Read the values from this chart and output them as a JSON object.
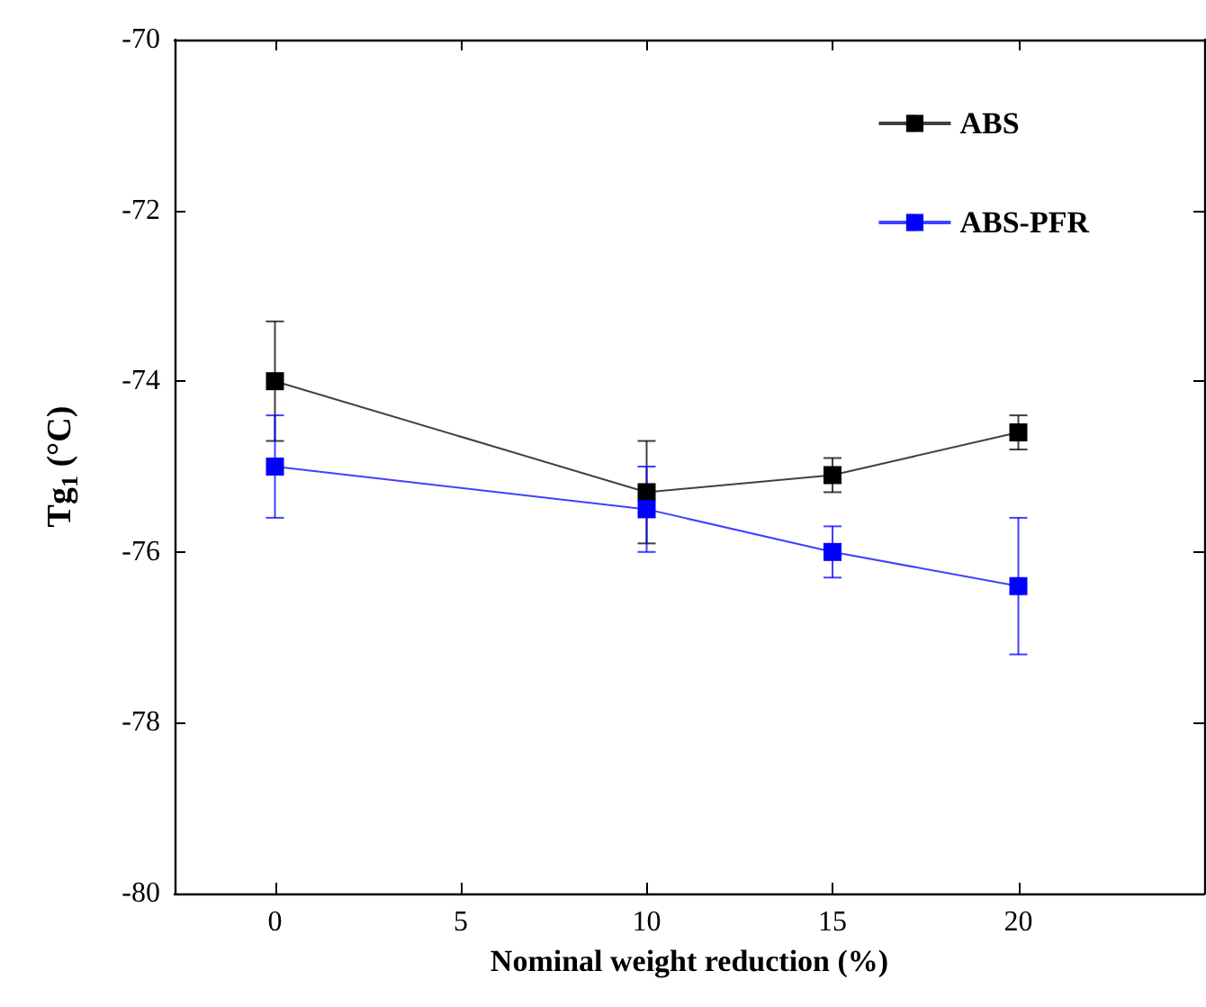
{
  "chart_data": {
    "type": "line",
    "xlabel": "Nominal weight reduction (%)",
    "ylabel": "Tg$_{1}$ (°C)",
    "x": [
      0,
      10,
      15,
      20
    ],
    "series": [
      {
        "name": "ABS",
        "color": "#000000",
        "values": [
          -74.0,
          -75.3,
          -75.1,
          -74.6
        ],
        "errors": [
          0.7,
          0.6,
          0.2,
          0.2
        ]
      },
      {
        "name": "ABS-PFR",
        "color": "#0000ff",
        "values": [
          -75.0,
          -75.5,
          -76.0,
          -76.4
        ],
        "errors": [
          0.6,
          0.5,
          0.3,
          0.8
        ]
      }
    ],
    "xlim": [
      -2.7,
      25
    ],
    "xticks": [
      0,
      5,
      10,
      15,
      20
    ],
    "ylim": [
      -80,
      -70
    ],
    "yticks": [
      -80,
      -78,
      -76,
      -74,
      -72,
      -70
    ],
    "grid": false,
    "legend": "top right",
    "marker": "square",
    "line_style": "solid"
  }
}
